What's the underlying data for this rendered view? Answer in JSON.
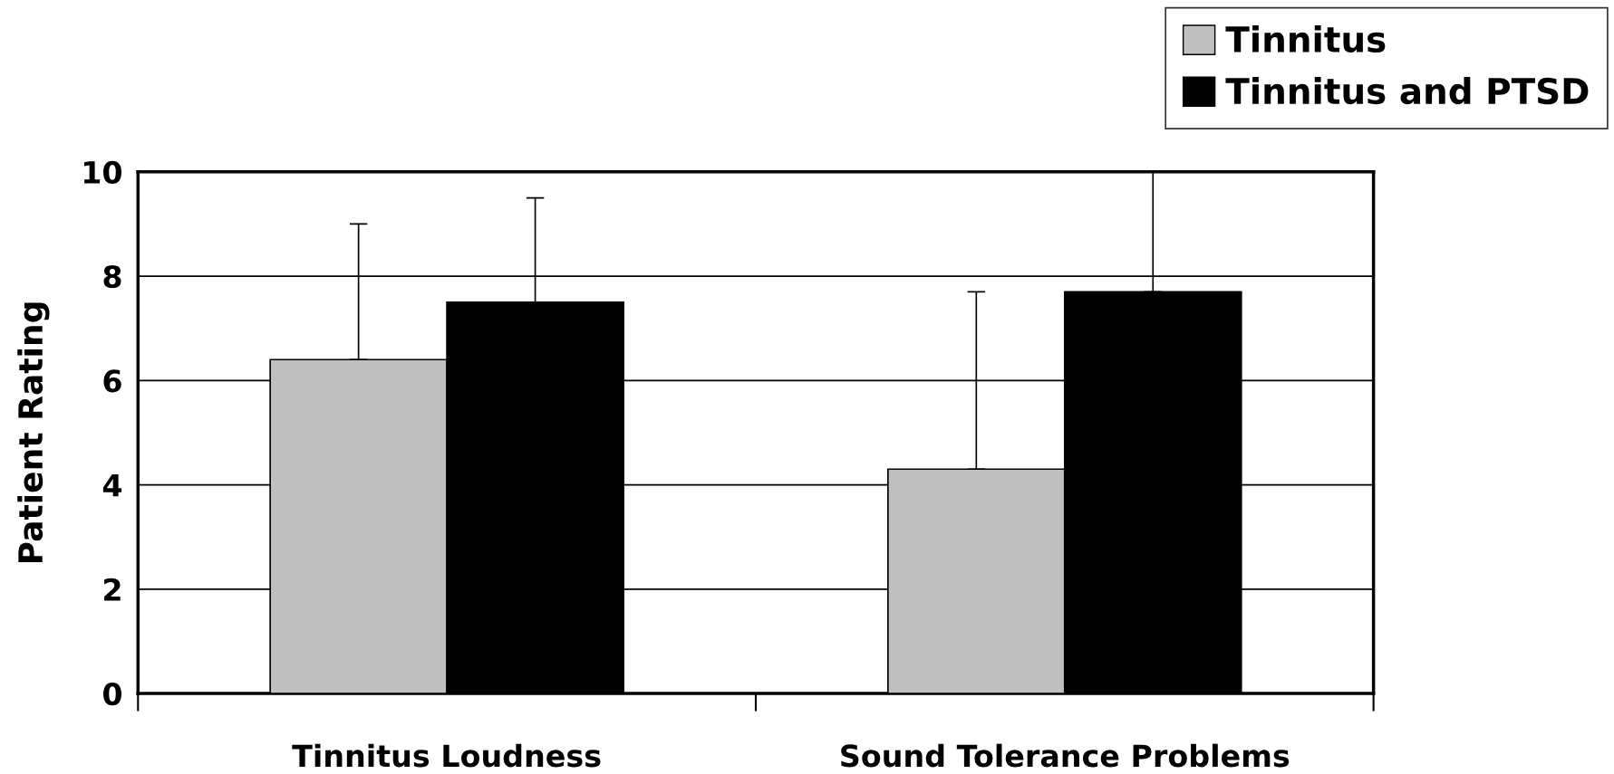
{
  "chart_data": {
    "type": "bar",
    "ylabel": "Patient Rating",
    "categories": [
      "Tinnitus Loudness",
      "Sound Tolerance Problems"
    ],
    "series": [
      {
        "name": "Tinnitus",
        "color": "#c0c0c0",
        "values": [
          6.4,
          4.3
        ],
        "errors": [
          [
            6.4,
            9.0
          ],
          [
            4.3,
            7.7
          ]
        ]
      },
      {
        "name": "Tinnitus and PTSD",
        "color": "#000000",
        "values": [
          7.5,
          7.7
        ],
        "errors": [
          [
            7.5,
            9.5
          ],
          [
            7.7,
            10.0
          ]
        ]
      }
    ],
    "ylim": [
      0,
      10
    ],
    "yticks": [
      0,
      2,
      4,
      6,
      8,
      10
    ],
    "grid": "y",
    "legend": "top right"
  }
}
